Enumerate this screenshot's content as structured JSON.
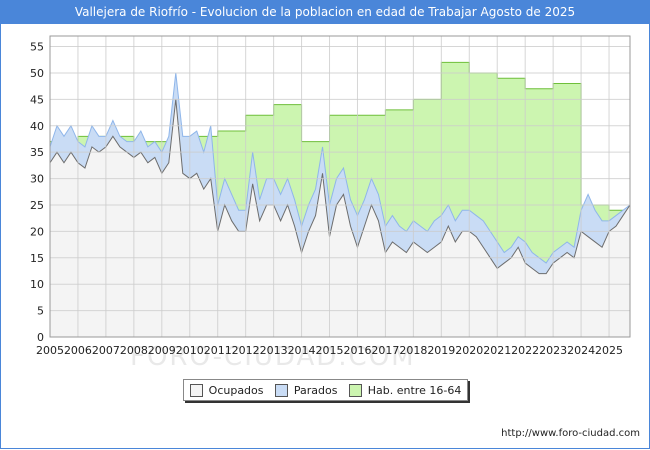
{
  "chart_data": {
    "type": "area",
    "title": "Vallejera de Riofrío - Evolucion de la poblacion en edad de Trabajar Agosto de 2025",
    "xlabel": "",
    "ylabel": "",
    "ylim": [
      0,
      57
    ],
    "xlim": [
      2005,
      2025.75
    ],
    "y_ticks": [
      0,
      5,
      10,
      15,
      20,
      25,
      30,
      35,
      40,
      45,
      50,
      55
    ],
    "x_ticks": [
      2005,
      2006,
      2007,
      2008,
      2009,
      2010,
      2011,
      2012,
      2013,
      2014,
      2015,
      2016,
      2017,
      2018,
      2019,
      2020,
      2021,
      2022,
      2023,
      2024,
      2025
    ],
    "grid": true,
    "legend_position": "bottom-center",
    "series": [
      {
        "name": "Hab. entre 16-64",
        "color": "#ccf5b0",
        "x": [
          2005,
          2006,
          2007,
          2008,
          2009,
          2010,
          2011,
          2012,
          2013,
          2014,
          2015,
          2016,
          2017,
          2018,
          2019,
          2020,
          2021,
          2022,
          2023,
          2024,
          2025,
          2025.75
        ],
        "values": [
          37,
          38,
          38,
          37,
          37,
          38,
          39,
          42,
          44,
          37,
          42,
          42,
          43,
          45,
          52,
          50,
          49,
          47,
          48,
          25,
          24,
          24
        ]
      },
      {
        "name": "Parados",
        "color": "#c9dcf5",
        "x": [
          2005,
          2005.25,
          2005.5,
          2005.75,
          2006,
          2006.25,
          2006.5,
          2006.75,
          2007,
          2007.25,
          2007.5,
          2007.75,
          2008,
          2008.25,
          2008.5,
          2008.75,
          2009,
          2009.25,
          2009.5,
          2009.75,
          2010,
          2010.25,
          2010.5,
          2010.75,
          2011,
          2011.25,
          2011.5,
          2011.75,
          2012,
          2012.25,
          2012.5,
          2012.75,
          2013,
          2013.25,
          2013.5,
          2013.75,
          2014,
          2014.25,
          2014.5,
          2014.75,
          2015,
          2015.25,
          2015.5,
          2015.75,
          2016,
          2016.25,
          2016.5,
          2016.75,
          2017,
          2017.25,
          2017.5,
          2017.75,
          2018,
          2018.25,
          2018.5,
          2018.75,
          2019,
          2019.25,
          2019.5,
          2019.75,
          2020,
          2020.25,
          2020.5,
          2020.75,
          2021,
          2021.25,
          2021.5,
          2021.75,
          2022,
          2022.25,
          2022.5,
          2022.75,
          2023,
          2023.25,
          2023.5,
          2023.75,
          2024,
          2024.25,
          2024.5,
          2024.75,
          2025,
          2025.25,
          2025.5,
          2025.75
        ],
        "values": [
          36,
          40,
          38,
          40,
          37,
          36,
          40,
          38,
          38,
          41,
          38,
          37,
          37,
          39,
          36,
          37,
          35,
          38,
          50,
          38,
          38,
          39,
          35,
          40,
          25,
          30,
          27,
          24,
          24,
          35,
          26,
          30,
          30,
          27,
          30,
          26,
          21,
          25,
          28,
          36,
          25,
          30,
          32,
          26,
          23,
          26,
          30,
          27,
          21,
          23,
          21,
          20,
          22,
          21,
          20,
          22,
          23,
          25,
          22,
          24,
          24,
          23,
          22,
          20,
          18,
          16,
          17,
          19,
          18,
          16,
          15,
          14,
          16,
          17,
          18,
          17,
          24,
          27,
          24,
          22,
          22,
          23,
          24,
          25
        ]
      },
      {
        "name": "Ocupados",
        "color": "#f4f4f4",
        "x": [
          2005,
          2005.25,
          2005.5,
          2005.75,
          2006,
          2006.25,
          2006.5,
          2006.75,
          2007,
          2007.25,
          2007.5,
          2007.75,
          2008,
          2008.25,
          2008.5,
          2008.75,
          2009,
          2009.25,
          2009.5,
          2009.75,
          2010,
          2010.25,
          2010.5,
          2010.75,
          2011,
          2011.25,
          2011.5,
          2011.75,
          2012,
          2012.25,
          2012.5,
          2012.75,
          2013,
          2013.25,
          2013.5,
          2013.75,
          2014,
          2014.25,
          2014.5,
          2014.75,
          2015,
          2015.25,
          2015.5,
          2015.75,
          2016,
          2016.25,
          2016.5,
          2016.75,
          2017,
          2017.25,
          2017.5,
          2017.75,
          2018,
          2018.25,
          2018.5,
          2018.75,
          2019,
          2019.25,
          2019.5,
          2019.75,
          2020,
          2020.25,
          2020.5,
          2020.75,
          2021,
          2021.25,
          2021.5,
          2021.75,
          2022,
          2022.25,
          2022.5,
          2022.75,
          2023,
          2023.25,
          2023.5,
          2023.75,
          2024,
          2024.25,
          2024.5,
          2024.75,
          2025,
          2025.25,
          2025.5,
          2025.75
        ],
        "values": [
          33,
          35,
          33,
          35,
          33,
          32,
          36,
          35,
          36,
          38,
          36,
          35,
          34,
          35,
          33,
          34,
          31,
          33,
          45,
          31,
          30,
          31,
          28,
          30,
          20,
          25,
          22,
          20,
          20,
          29,
          22,
          25,
          25,
          22,
          25,
          21,
          16,
          20,
          23,
          31,
          19,
          25,
          27,
          21,
          17,
          21,
          25,
          22,
          16,
          18,
          17,
          16,
          18,
          17,
          16,
          17,
          18,
          21,
          18,
          20,
          20,
          19,
          17,
          15,
          13,
          14,
          15,
          17,
          14,
          13,
          12,
          12,
          14,
          15,
          16,
          15,
          20,
          19,
          18,
          17,
          20,
          21,
          23,
          25
        ]
      }
    ]
  },
  "legend": {
    "items": [
      {
        "label": "Ocupados",
        "color": "#f4f4f4"
      },
      {
        "label": "Parados",
        "color": "#c9dcf5"
      },
      {
        "label": "Hab. entre 16-64",
        "color": "#ccf5b0"
      }
    ]
  },
  "source": "http://www.foro-ciudad.com",
  "watermark": "FORO-CIUDAD.COM"
}
